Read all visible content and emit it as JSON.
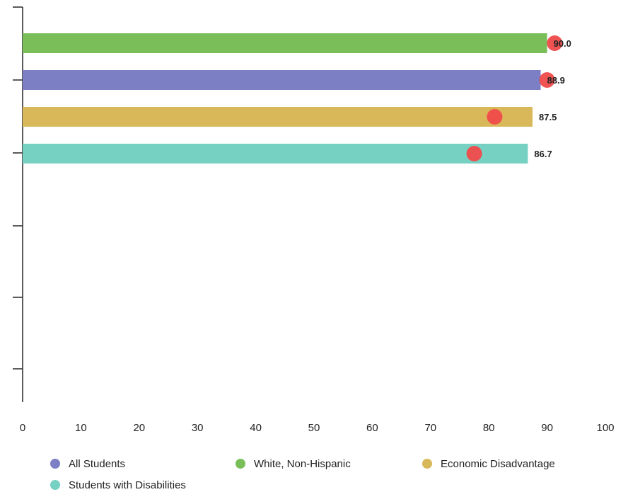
{
  "chart_data": {
    "type": "bar",
    "orientation": "horizontal",
    "series": [
      {
        "name": "White, Non-Hispanic",
        "value": 90.0,
        "label": "90.0",
        "marker": 91.3,
        "color": "#79be58"
      },
      {
        "name": "All Students",
        "value": 88.9,
        "label": "88.9",
        "marker": 90.0,
        "color": "#7d7fc4"
      },
      {
        "name": "Economic Disadvantage",
        "value": 87.5,
        "label": "87.5",
        "marker": 81.0,
        "color": "#d9b85a"
      },
      {
        "name": "Students with Disabilities",
        "value": 86.7,
        "label": "86.7",
        "marker": 77.5,
        "color": "#76d1c3"
      }
    ],
    "marker_color": "#f04a4a",
    "x_ticks": [
      "0",
      "10",
      "20",
      "30",
      "40",
      "50",
      "60",
      "70",
      "80",
      "90",
      "100"
    ],
    "xlim": [
      0,
      100
    ],
    "grid": false,
    "legend": {
      "position": "bottom",
      "items": [
        {
          "name": "All Students",
          "color": "#7d7fc4"
        },
        {
          "name": "White, Non-Hispanic",
          "color": "#79be58"
        },
        {
          "name": "Economic Disadvantage",
          "color": "#d9b85a"
        },
        {
          "name": "Students with Disabilities",
          "color": "#76d1c3"
        }
      ]
    }
  }
}
